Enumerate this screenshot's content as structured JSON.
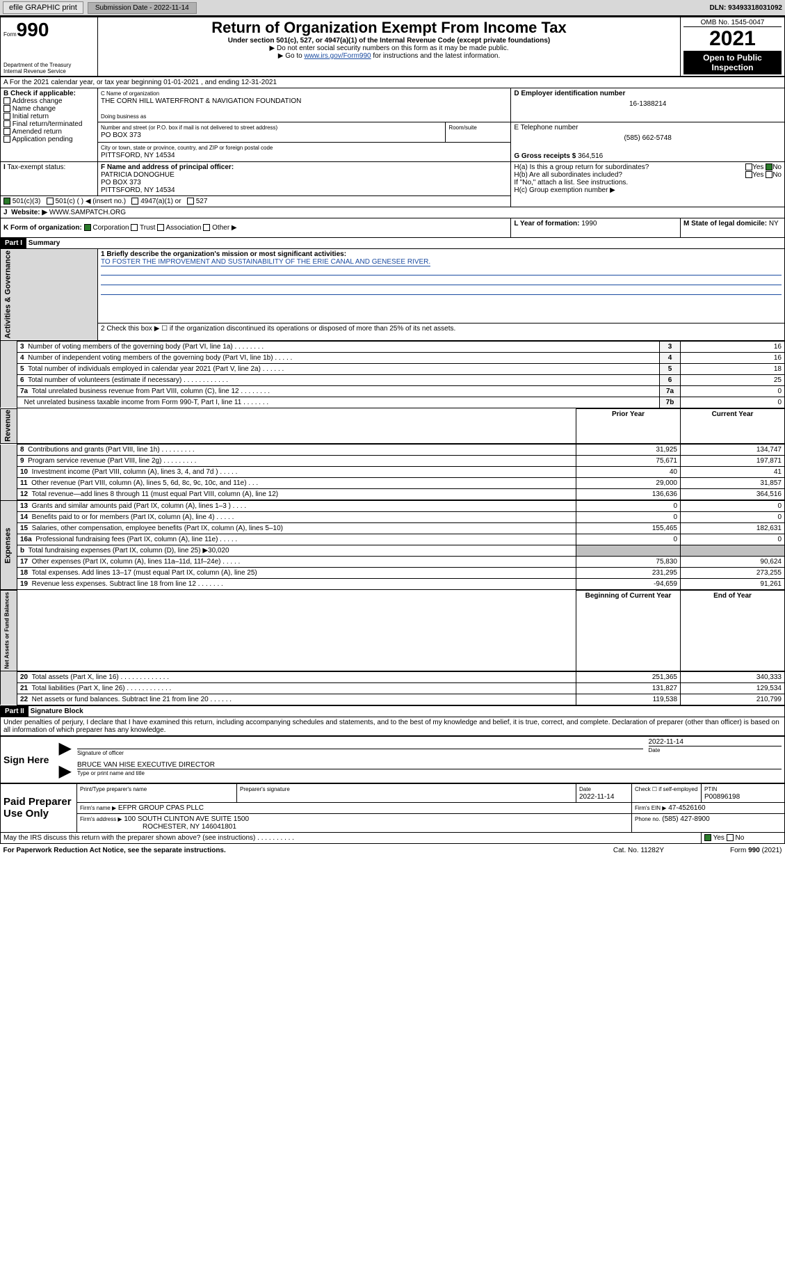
{
  "topbar": {
    "efile": "efile GRAPHIC print",
    "subdate_label": "Submission Date - 2022-11-14",
    "dln": "DLN: 93493318031092"
  },
  "header": {
    "form_small": "Form",
    "form_big": "990",
    "dept": "Department of the Treasury",
    "irs": "Internal Revenue Service",
    "title": "Return of Organization Exempt From Income Tax",
    "subtitle": "Under section 501(c), 527, or 4947(a)(1) of the Internal Revenue Code (except private foundations)",
    "note1": "▶ Do not enter social security numbers on this form as it may be made public.",
    "note2_pre": "▶ Go to ",
    "note2_link": "www.irs.gov/Form990",
    "note2_post": " for instructions and the latest information.",
    "omb": "OMB No. 1545-0047",
    "year": "2021",
    "open": "Open to Public Inspection"
  },
  "periodline": "A For the 2021 calendar year, or tax year beginning 01-01-2021   , and ending 12-31-2021",
  "boxB": {
    "label": "B Check if applicable:",
    "items": [
      "Address change",
      "Name change",
      "Initial return",
      "Final return/terminated",
      "Amended return",
      "Application pending"
    ]
  },
  "boxC": {
    "name_label": "C Name of organization",
    "name": "THE CORN HILL WATERFRONT & NAVIGATION FOUNDATION",
    "dba_label": "Doing business as",
    "street_label": "Number and street (or P.O. box if mail is not delivered to street address)",
    "room_label": "Room/suite",
    "street": "PO BOX 373",
    "city_label": "City or town, state or province, country, and ZIP or foreign postal code",
    "city": "PITTSFORD, NY  14534"
  },
  "boxD": {
    "label": "D Employer identification number",
    "value": "16-1388214"
  },
  "boxE": {
    "label": "E Telephone number",
    "value": "(585) 662-5748"
  },
  "boxG": {
    "label": "G Gross receipts $",
    "value": "364,516"
  },
  "boxF": {
    "label": "F Name and address of principal officer:",
    "name": "PATRICIA DONOGHUE",
    "street": "PO BOX 373",
    "city": "PITTSFORD, NY  14534"
  },
  "boxH": {
    "a": "H(a)  Is this a group return for subordinates?",
    "a_yes": "Yes",
    "a_no": "No",
    "b": "H(b)  Are all subordinates included?",
    "b_yes": "Yes",
    "b_no": "No",
    "note": "If \"No,\" attach a list. See instructions.",
    "c": "H(c)  Group exemption number ▶"
  },
  "lineI": {
    "label": "Tax-exempt status:",
    "opt1": "501(c)(3)",
    "opt2": "501(c) (   ) ◀ (insert no.)",
    "opt3": "4947(a)(1) or",
    "opt4": "527"
  },
  "lineJ": {
    "label": "Website: ▶",
    "value": "WWW.SAMPATCH.ORG"
  },
  "lineK": {
    "label": "K Form of organization:",
    "corp": "Corporation",
    "trust": "Trust",
    "assoc": "Association",
    "other": "Other ▶"
  },
  "lineL": {
    "label": "L Year of formation:",
    "value": "1990"
  },
  "lineM": {
    "label": "M State of legal domicile:",
    "value": "NY"
  },
  "part1": {
    "tag": "Part I",
    "title": "Summary"
  },
  "p1": {
    "l1a": "1  Briefly describe the organization's mission or most significant activities:",
    "l1b": "TO FOSTER THE IMPROVEMENT AND SUSTAINABILITY OF THE ERIE CANAL AND GENESEE RIVER.",
    "l2": "2   Check this box ▶ ☐  if the organization discontinued its operations or disposed of more than 25% of its net assets.",
    "rows_ag": [
      {
        "n": "3",
        "t": "Number of voting members of the governing body (Part VI, line 1a)  .   .   .   .   .   .   .   .",
        "c": "3",
        "v": "16"
      },
      {
        "n": "4",
        "t": "Number of independent voting members of the governing body (Part VI, line 1b)  .   .   .   .   .",
        "c": "4",
        "v": "16"
      },
      {
        "n": "5",
        "t": "Total number of individuals employed in calendar year 2021 (Part V, line 2a)  .   .   .   .   .   .",
        "c": "5",
        "v": "18"
      },
      {
        "n": "6",
        "t": "Total number of volunteers (estimate if necessary)  .   .   .   .   .   .   .   .   .   .   .   .",
        "c": "6",
        "v": "25"
      },
      {
        "n": "7a",
        "t": "Total unrelated business revenue from Part VIII, column (C), line 12  .   .   .   .   .   .   .   .",
        "c": "7a",
        "v": "0"
      },
      {
        "n": "",
        "t": "Net unrelated business taxable income from Form 990-T, Part I, line 11  .   .   .   .   .   .   .",
        "c": "7b",
        "v": "0"
      }
    ],
    "col_prior": "Prior Year",
    "col_current": "Current Year",
    "rev_rows": [
      {
        "n": "8",
        "t": "Contributions and grants (Part VIII, line 1h)  .   .   .   .   .   .   .   .   .",
        "p": "31,925",
        "c": "134,747"
      },
      {
        "n": "9",
        "t": "Program service revenue (Part VIII, line 2g)  .   .   .   .   .   .   .   .   .",
        "p": "75,671",
        "c": "197,871"
      },
      {
        "n": "10",
        "t": "Investment income (Part VIII, column (A), lines 3, 4, and 7d )  .   .   .   .   .",
        "p": "40",
        "c": "41"
      },
      {
        "n": "11",
        "t": "Other revenue (Part VIII, column (A), lines 5, 6d, 8c, 9c, 10c, and 11e)  .   .   .",
        "p": "29,000",
        "c": "31,857"
      },
      {
        "n": "12",
        "t": "Total revenue—add lines 8 through 11 (must equal Part VIII, column (A), line 12)",
        "p": "136,636",
        "c": "364,516"
      }
    ],
    "exp_rows": [
      {
        "n": "13",
        "t": "Grants and similar amounts paid (Part IX, column (A), lines 1–3 )  .   .   .   .",
        "p": "0",
        "c": "0"
      },
      {
        "n": "14",
        "t": "Benefits paid to or for members (Part IX, column (A), line 4)  .   .   .   .   .",
        "p": "0",
        "c": "0"
      },
      {
        "n": "15",
        "t": "Salaries, other compensation, employee benefits (Part IX, column (A), lines 5–10)",
        "p": "155,465",
        "c": "182,631"
      },
      {
        "n": "16a",
        "t": "Professional fundraising fees (Part IX, column (A), line 11e)  .   .   .   .   .",
        "p": "0",
        "c": "0"
      },
      {
        "n": "b",
        "t": "Total fundraising expenses (Part IX, column (D), line 25) ▶30,020",
        "p": "",
        "c": "",
        "gray": true
      },
      {
        "n": "17",
        "t": "Other expenses (Part IX, column (A), lines 11a–11d, 11f–24e)  .   .   .   .   .",
        "p": "75,830",
        "c": "90,624"
      },
      {
        "n": "18",
        "t": "Total expenses. Add lines 13–17 (must equal Part IX, column (A), line 25)",
        "p": "231,295",
        "c": "273,255"
      },
      {
        "n": "19",
        "t": "Revenue less expenses. Subtract line 18 from line 12  .   .   .   .   .   .   .",
        "p": "-94,659",
        "c": "91,261"
      }
    ],
    "col_begin": "Beginning of Current Year",
    "col_end": "End of Year",
    "na_rows": [
      {
        "n": "20",
        "t": "Total assets (Part X, line 16)  .   .   .   .   .   .   .   .   .   .   .   .   .",
        "p": "251,365",
        "c": "340,333"
      },
      {
        "n": "21",
        "t": "Total liabilities (Part X, line 26)  .   .   .   .   .   .   .   .   .   .   .   .",
        "p": "131,827",
        "c": "129,534"
      },
      {
        "n": "22",
        "t": "Net assets or fund balances. Subtract line 21 from line 20  .   .   .   .   .   .",
        "p": "119,538",
        "c": "210,799"
      }
    ]
  },
  "vlabels": {
    "ag": "Activities & Governance",
    "rev": "Revenue",
    "exp": "Expenses",
    "na": "Net Assets or Fund Balances"
  },
  "part2": {
    "tag": "Part II",
    "title": "Signature Block"
  },
  "sig": {
    "perjury": "Under penalties of perjury, I declare that I have examined this return, including accompanying schedules and statements, and to the best of my knowledge and belief, it is true, correct, and complete. Declaration of preparer (other than officer) is based on all information of which preparer has any knowledge.",
    "signhere": "Sign Here",
    "officer_sig": "Signature of officer",
    "officer_date": "2022-11-14",
    "date_label": "Date",
    "officer_name": "BRUCE VAN HISE  EXECUTIVE DIRECTOR",
    "officer_name_label": "Type or print name and title",
    "paid": "Paid Preparer Use Only",
    "prep_name_label": "Print/Type preparer's name",
    "prep_sig_label": "Preparer's signature",
    "prep_date_label": "Date",
    "prep_date": "2022-11-14",
    "check_label": "Check ☐ if self-employed",
    "ptin_label": "PTIN",
    "ptin": "P00896198",
    "firm_name_label": "Firm's name    ▶",
    "firm_name": "EFPR GROUP CPAS PLLC",
    "firm_ein_label": "Firm's EIN ▶",
    "firm_ein": "47-4526160",
    "firm_addr_label": "Firm's address ▶",
    "firm_addr1": "100 SOUTH CLINTON AVE SUITE 1500",
    "firm_addr2": "ROCHESTER, NY  146041801",
    "phone_label": "Phone no.",
    "phone": "(585) 427-8900",
    "discuss": "May the IRS discuss this return with the preparer shown above? (see instructions)  .   .   .   .   .   .   .   .   .   .",
    "discuss_yes": "Yes",
    "discuss_no": "No"
  },
  "footer": {
    "pra": "For Paperwork Reduction Act Notice, see the separate instructions.",
    "cat": "Cat. No. 11282Y",
    "formref": "Form 990 (2021)"
  }
}
